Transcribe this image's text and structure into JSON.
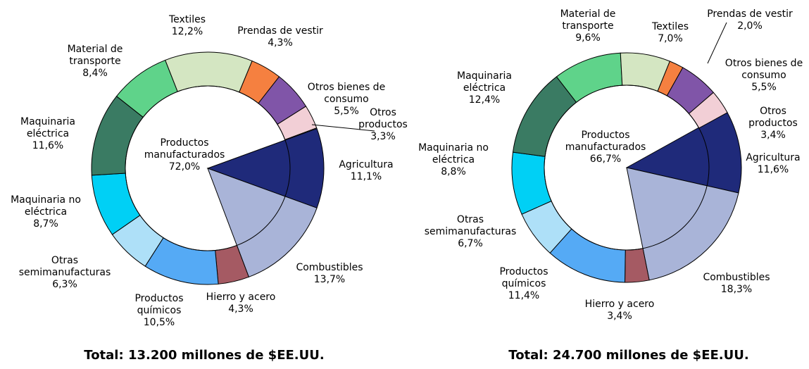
{
  "chart_data": [
    {
      "type": "pie",
      "title": "Total: 13.200 millones de $EE.UU.",
      "categories": [
        "Agricultura",
        "Combustibles",
        "Hierro y acero",
        "Productos químicos",
        "Otras semimanufacturas",
        "Maquinaria no eléctrica",
        "Maquinaria eléctrica",
        "Material de transporte",
        "Textiles",
        "Prendas de vestir",
        "Otros bienes de consumo",
        "Otros productos"
      ],
      "values": [
        11.1,
        13.7,
        4.3,
        10.5,
        6.3,
        8.7,
        11.6,
        8.4,
        12.2,
        4.3,
        5.5,
        3.3
      ],
      "value_labels": [
        "11,1%",
        "13,7%",
        "4,3%",
        "10,5%",
        "6,3%",
        "8,7%",
        "11,6%",
        "8,4%",
        "12,2%",
        "4,3%",
        "5,5%",
        "3,3%"
      ],
      "colors": [
        "#1f2a7a",
        "#a9b4d8",
        "#a55a63",
        "#55aaf5",
        "#aee0f8",
        "#00d0f5",
        "#3a7b63",
        "#5fd38a",
        "#d4e6c2",
        "#f58040",
        "#8055a8",
        "#f2cfd6"
      ],
      "full": [
        true,
        true,
        false,
        false,
        false,
        false,
        false,
        false,
        false,
        false,
        false,
        false
      ],
      "center": {
        "name": "Productos manufacturados",
        "value": 72.0,
        "label": "72,0%"
      }
    },
    {
      "type": "pie",
      "title": "Total: 24.700 millones de $EE.UU.",
      "categories": [
        "Agricultura",
        "Combustibles",
        "Hierro y acero",
        "Productos químicos",
        "Otras semimanufacturas",
        "Maquinaria no eléctrica",
        "Maquinaria eléctrica",
        "Material de transporte",
        "Textiles",
        "Prendas de vestir",
        "Otros bienes de consumo",
        "Otros productos"
      ],
      "values": [
        11.6,
        18.3,
        3.4,
        11.4,
        6.7,
        8.8,
        12.4,
        9.6,
        7.0,
        2.0,
        5.5,
        3.4
      ],
      "value_labels": [
        "11,6%",
        "18,3%",
        "3,4%",
        "11,4%",
        "6,7%",
        "8,8%",
        "12,4%",
        "9,6%",
        "7,0%",
        "2,0%",
        "5,5%",
        "3,4%"
      ],
      "colors": [
        "#1f2a7a",
        "#a9b4d8",
        "#a55a63",
        "#55aaf5",
        "#aee0f8",
        "#00d0f5",
        "#3a7b63",
        "#5fd38a",
        "#d4e6c2",
        "#f58040",
        "#8055a8",
        "#f2cfd6"
      ],
      "full": [
        true,
        true,
        false,
        false,
        false,
        false,
        false,
        false,
        false,
        false,
        false,
        false
      ],
      "center": {
        "name": "Productos manufacturados",
        "value": 66.7,
        "label": "66,7%"
      }
    }
  ]
}
